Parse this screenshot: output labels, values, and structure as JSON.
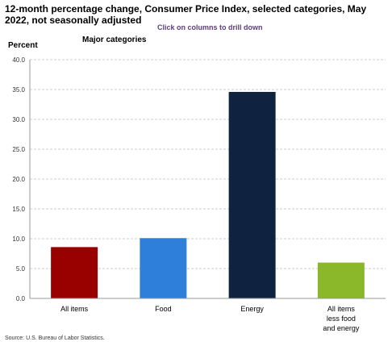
{
  "chart_data": {
    "type": "bar",
    "title": "12-month percentage change, Consumer Price Index, selected categories, May 2022, not seasonally adjusted",
    "subtitle": "Major categories",
    "instruction": "Click on columns to drill down",
    "ylabel": "Percent",
    "xlabel": "",
    "ylim": [
      0,
      40
    ],
    "yticks": [
      "0.0",
      "5.0",
      "10.0",
      "15.0",
      "20.0",
      "25.0",
      "30.0",
      "35.0",
      "40.0"
    ],
    "ytick_values": [
      0,
      5,
      10,
      15,
      20,
      25,
      30,
      35,
      40
    ],
    "grid": true,
    "categories": [
      [
        "All items"
      ],
      [
        "Food"
      ],
      [
        "Energy"
      ],
      [
        "All items",
        "less food",
        "and energy"
      ]
    ],
    "values": [
      8.6,
      10.1,
      34.6,
      6.0
    ],
    "colors": [
      "#990000",
      "#2e7fd9",
      "#0f2240",
      "#8ab82a"
    ],
    "source": "Source: U.S. Bureau of Labor Statistics."
  }
}
